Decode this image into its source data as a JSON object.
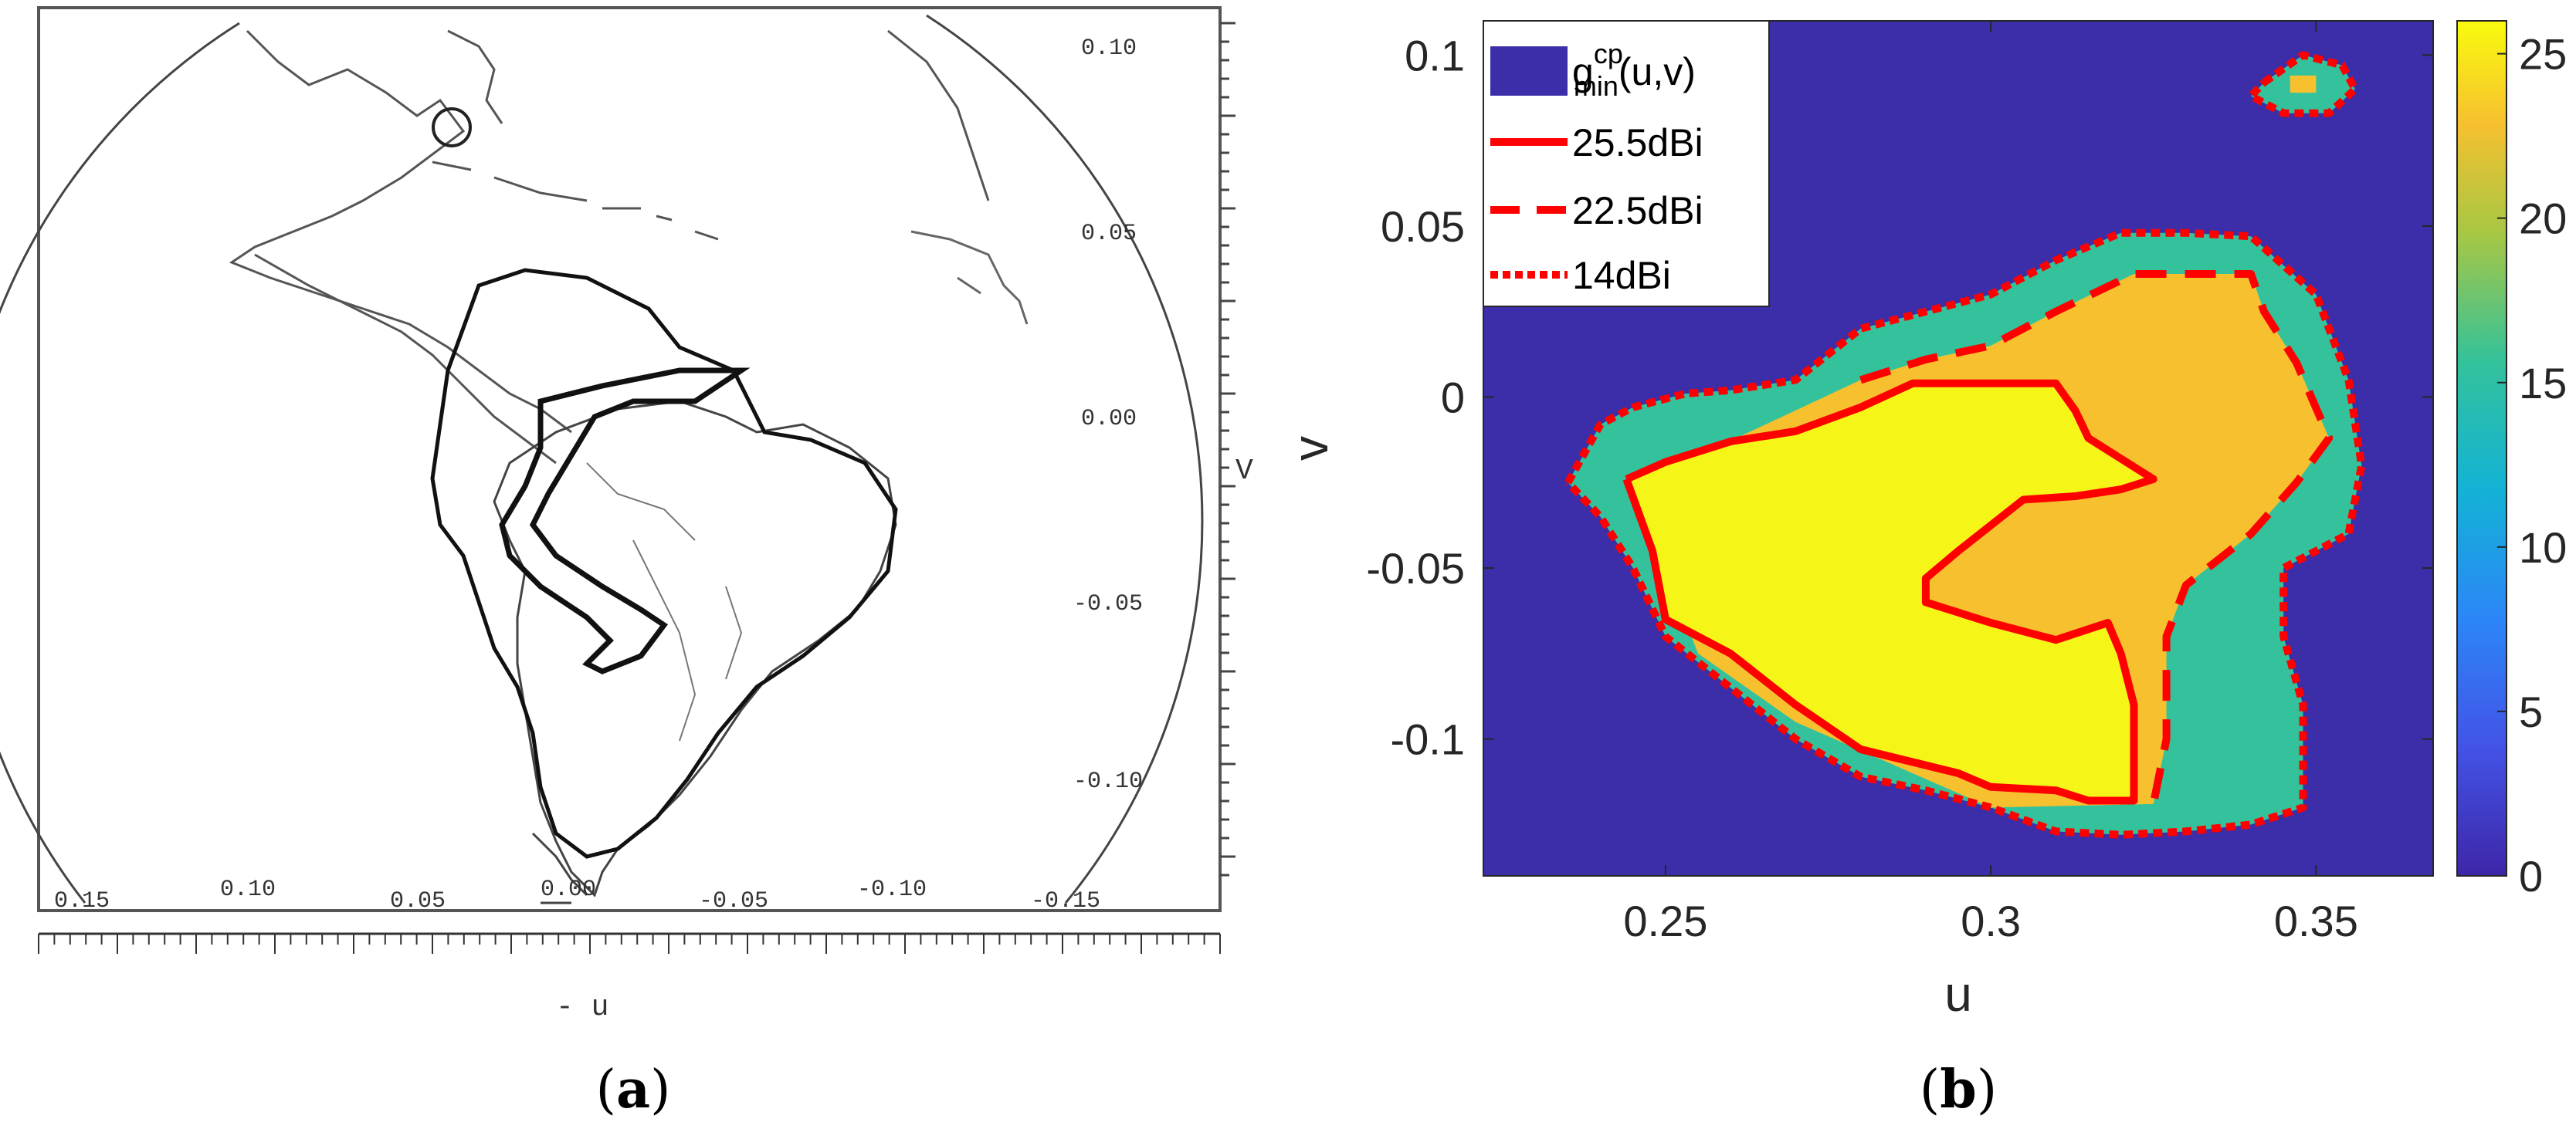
{
  "panel_a": {
    "caption_letter": "a",
    "x_ticks": [
      "0.15",
      "0.10",
      "0.05",
      "0.00",
      "-0.05",
      "-0.10",
      "-0.15"
    ],
    "y_ticks": [
      "0.10",
      "0.05",
      "0.00",
      "-0.05",
      "-0.10"
    ],
    "xlabel": "- u",
    "ylabel": "V"
  },
  "panel_b": {
    "caption_letter": "b",
    "legend": {
      "fill_entry": {
        "base": "g",
        "sup": "cp",
        "sub": "min",
        "args": "(u,v)"
      },
      "line_entries": [
        "25.5dBi",
        "22.5dBi",
        "14dBi"
      ]
    },
    "colorbar": {
      "ticks": [
        "0",
        "5",
        "10",
        "15",
        "20",
        "25"
      ]
    }
  },
  "colors": {
    "background_level": "#3b2ea8",
    "level_14": "#33c29c",
    "level_22_5": "#f6c02f",
    "level_25_5": "#f6f518",
    "contour": "#ff0000"
  },
  "chart_data": {
    "type": "heatmap",
    "xlabel": "u",
    "ylabel": "v",
    "xlim": [
      0.222,
      0.368
    ],
    "ylim": [
      -0.14,
      0.11
    ],
    "x_ticks": [
      0.25,
      0.3,
      0.35
    ],
    "y_ticks": [
      0.1,
      0.05,
      0,
      -0.05,
      -0.1
    ],
    "color_range": [
      0,
      26
    ],
    "colormap": "parula",
    "contours": [
      {
        "name": "25.5dBi",
        "style": "solid",
        "level": 25.5,
        "points": [
          [
            0.244,
            -0.024
          ],
          [
            0.25,
            -0.019
          ],
          [
            0.26,
            -0.013
          ],
          [
            0.27,
            -0.01
          ],
          [
            0.28,
            -0.003
          ],
          [
            0.288,
            0.004
          ],
          [
            0.31,
            0.004
          ],
          [
            0.313,
            -0.004
          ],
          [
            0.315,
            -0.012
          ],
          [
            0.32,
            -0.018
          ],
          [
            0.325,
            -0.024
          ],
          [
            0.32,
            -0.027
          ],
          [
            0.313,
            -0.029
          ],
          [
            0.305,
            -0.03
          ],
          [
            0.295,
            -0.045
          ],
          [
            0.29,
            -0.053
          ],
          [
            0.29,
            -0.06
          ],
          [
            0.3,
            -0.066
          ],
          [
            0.31,
            -0.071
          ],
          [
            0.318,
            -0.066
          ],
          [
            0.32,
            -0.075
          ],
          [
            0.322,
            -0.09
          ],
          [
            0.322,
            -0.118
          ],
          [
            0.315,
            -0.118
          ],
          [
            0.31,
            -0.115
          ],
          [
            0.3,
            -0.114
          ],
          [
            0.295,
            -0.11
          ],
          [
            0.28,
            -0.103
          ],
          [
            0.27,
            -0.09
          ],
          [
            0.26,
            -0.075
          ],
          [
            0.25,
            -0.065
          ],
          [
            0.248,
            -0.045
          ]
        ]
      },
      {
        "name": "22.5dBi",
        "style": "dashed",
        "level": 22.5,
        "points": [
          [
            0.28,
            0.005
          ],
          [
            0.29,
            0.011
          ],
          [
            0.3,
            0.015
          ],
          [
            0.31,
            0.025
          ],
          [
            0.322,
            0.036
          ],
          [
            0.332,
            0.036
          ],
          [
            0.34,
            0.036
          ],
          [
            0.342,
            0.025
          ],
          [
            0.347,
            0.01
          ],
          [
            0.352,
            -0.012
          ],
          [
            0.347,
            -0.025
          ],
          [
            0.34,
            -0.04
          ],
          [
            0.33,
            -0.055
          ],
          [
            0.327,
            -0.07
          ],
          [
            0.327,
            -0.09
          ],
          [
            0.327,
            -0.1
          ],
          [
            0.325,
            -0.119
          ]
        ]
      },
      {
        "name": "14dBi",
        "style": "dotted",
        "level": 14,
        "points": [
          [
            0.235,
            -0.025
          ],
          [
            0.24,
            -0.008
          ],
          [
            0.245,
            -0.003
          ],
          [
            0.253,
            0.001
          ],
          [
            0.26,
            0.002
          ],
          [
            0.27,
            0.005
          ],
          [
            0.28,
            0.02
          ],
          [
            0.29,
            0.025
          ],
          [
            0.3,
            0.03
          ],
          [
            0.31,
            0.04
          ],
          [
            0.32,
            0.048
          ],
          [
            0.33,
            0.048
          ],
          [
            0.34,
            0.047
          ],
          [
            0.35,
            0.03
          ],
          [
            0.355,
            0.005
          ],
          [
            0.357,
            -0.02
          ],
          [
            0.355,
            -0.04
          ],
          [
            0.345,
            -0.05
          ],
          [
            0.345,
            -0.07
          ],
          [
            0.348,
            -0.09
          ],
          [
            0.348,
            -0.11
          ],
          [
            0.348,
            -0.12
          ],
          [
            0.34,
            -0.125
          ],
          [
            0.33,
            -0.127
          ],
          [
            0.32,
            -0.128
          ],
          [
            0.31,
            -0.127
          ],
          [
            0.3,
            -0.12
          ],
          [
            0.29,
            -0.115
          ],
          [
            0.28,
            -0.111
          ],
          [
            0.27,
            -0.1
          ],
          [
            0.26,
            -0.085
          ],
          [
            0.25,
            -0.07
          ],
          [
            0.245,
            -0.05
          ],
          [
            0.24,
            -0.035
          ]
        ]
      },
      {
        "name": "14dBi",
        "style": "dotted",
        "level": 14,
        "points": [
          [
            0.342,
            0.092
          ],
          [
            0.348,
            0.1
          ],
          [
            0.354,
            0.097
          ],
          [
            0.356,
            0.09
          ],
          [
            0.352,
            0.083
          ],
          [
            0.345,
            0.083
          ],
          [
            0.34,
            0.088
          ]
        ]
      }
    ]
  }
}
